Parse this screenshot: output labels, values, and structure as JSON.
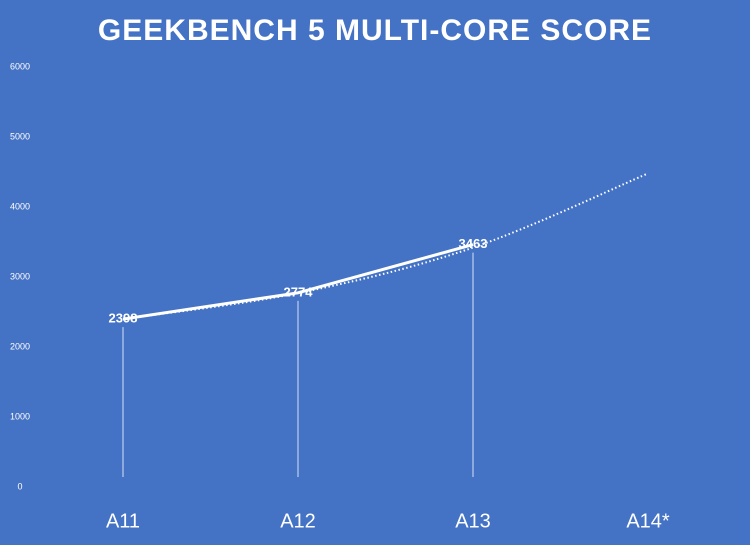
{
  "chart_data": {
    "type": "line",
    "title": "GEEKBENCH 5 MULTI-CORE SCORE",
    "categories": [
      "A11",
      "A12",
      "A13",
      "A14*"
    ],
    "series": [
      {
        "name": "Geekbench 5 Multi-Core",
        "color": "#ffffff",
        "values": [
          2398,
          2774,
          3463,
          null
        ]
      }
    ],
    "trendline": {
      "values": [
        2400,
        2770,
        3420,
        4480
      ]
    },
    "ylim": [
      0,
      6000
    ],
    "yticks": [
      0,
      1000,
      2000,
      3000,
      4000,
      5000,
      6000
    ],
    "background": "#4472c4",
    "data_labels": true,
    "drop_lines": true
  }
}
